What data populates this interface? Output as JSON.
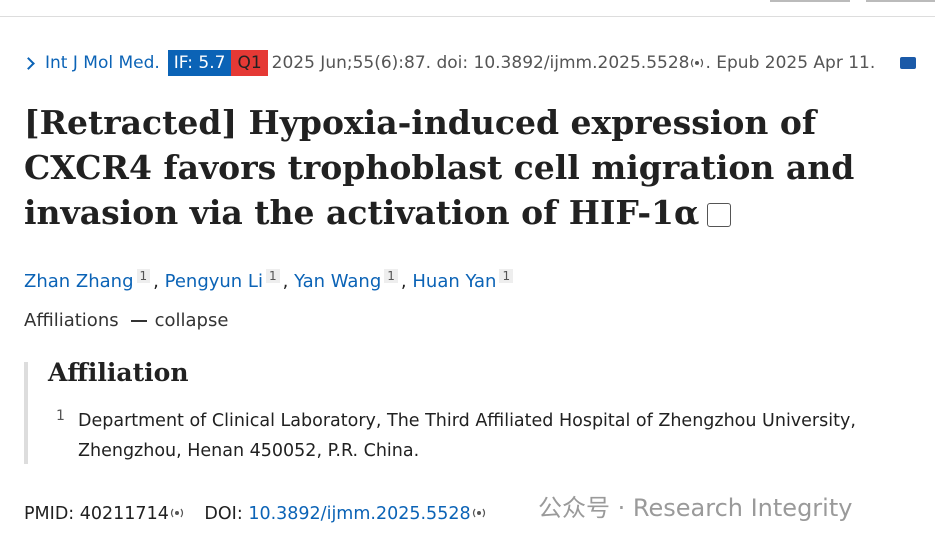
{
  "citation": {
    "journal": "Int J Mol Med.",
    "impact_factor": "IF: 5.7",
    "quartile": "Q1",
    "reference": "2025 Jun;55(6):87. doi: 10.3892/ijmm.2025.5528",
    "epub": ". Epub 2025 Apr 11."
  },
  "title": "[Retracted] Hypoxia-induced expression of CXCR4 favors trophoblast cell migration and invasion via the activation of HIF-1α",
  "authors": {
    "separator": ",",
    "list": [
      {
        "name": "Zhan Zhang",
        "affiliation": "1"
      },
      {
        "name": "Pengyun Li",
        "affiliation": "1"
      },
      {
        "name": "Yan Wang",
        "affiliation": "1"
      },
      {
        "name": "Huan Yan",
        "affiliation": "1"
      }
    ]
  },
  "affiliations_toggle": {
    "label": "Affiliations",
    "action": "collapse"
  },
  "affiliation_box": {
    "heading": "Affiliation",
    "items": [
      {
        "number": "1",
        "text": "Department of Clinical Laboratory, The Third Affiliated Hospital of Zhengzhou University, Zhengzhou, Henan 450052, P.R. China."
      }
    ]
  },
  "identifiers": {
    "pmid_label": "PMID:",
    "pmid": "40211714",
    "doi_label": "DOI:",
    "doi": "10.3892/ijmm.2025.5528"
  },
  "watermark": "公众号 · Research Integrity"
}
